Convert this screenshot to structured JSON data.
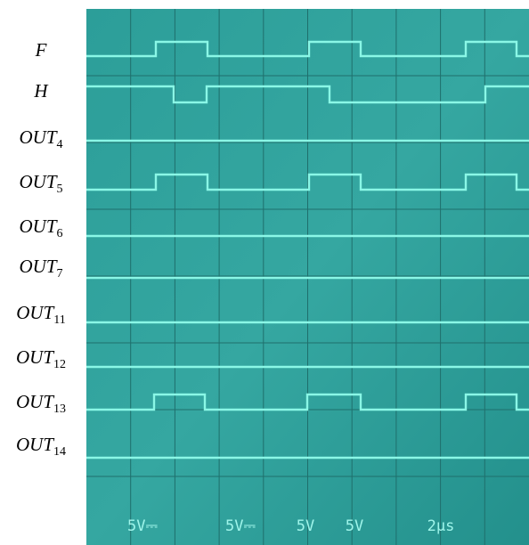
{
  "labels": [
    {
      "base": "F"
    },
    {
      "base": "H"
    },
    {
      "base": "OUT",
      "sub": "4"
    },
    {
      "base": "OUT",
      "sub": "5"
    },
    {
      "base": "OUT",
      "sub": "6"
    },
    {
      "base": "OUT",
      "sub": "7"
    },
    {
      "base": "OUT",
      "sub": "11"
    },
    {
      "base": "OUT",
      "sub": "12"
    },
    {
      "base": "OUT",
      "sub": "13"
    },
    {
      "base": "OUT",
      "sub": "14"
    }
  ],
  "readouts": [
    "5V⎓",
    "5V⎓",
    "5V",
    "5V",
    "2µs"
  ]
}
